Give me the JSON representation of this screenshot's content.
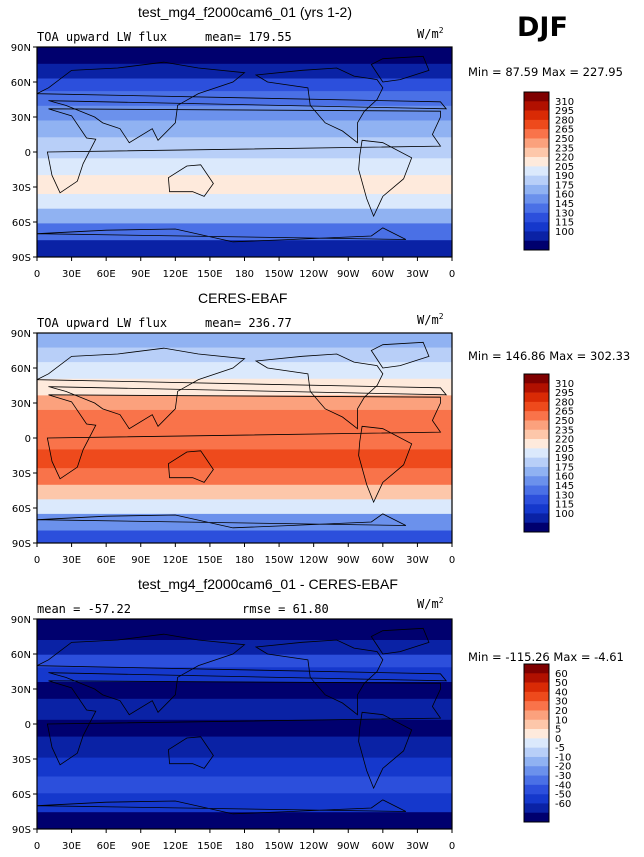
{
  "season": "DJF",
  "units_base": "W/m",
  "units_exp": "2",
  "chart_data": [
    {
      "type": "heatmap",
      "title": "test_mg4_f2000cam6_01 (yrs 1-2)",
      "variable": "TOA upward LW flux",
      "mean_text": "mean= 179.55",
      "units": "W/m2",
      "min": 87.59,
      "max": 227.95,
      "minmax_text": "Min =  87.59 Max = 227.95",
      "x_ticks": [
        "0",
        "30E",
        "60E",
        "90E",
        "120E",
        "150E",
        "180",
        "150W",
        "120W",
        "90W",
        "60W",
        "30W",
        "0"
      ],
      "y_ticks": [
        "90N",
        "60N",
        "30N",
        "0",
        "30S",
        "60S",
        "90S"
      ],
      "levels": [
        "310",
        "295",
        "280",
        "265",
        "250",
        "235",
        "220",
        "205",
        "190",
        "175",
        "160",
        "145",
        "130",
        "115",
        "100"
      ],
      "colors": [
        "#7f0000",
        "#b11000",
        "#d92a05",
        "#ee4a1c",
        "#f9734a",
        "#fba17d",
        "#fdc7aa",
        "#feeadc",
        "#dbe9fc",
        "#b8cff8",
        "#90b2f2",
        "#6b91ec",
        "#4a70e6",
        "#2c4fdc",
        "#1538cc",
        "#0a22a5",
        "#00006e"
      ]
    },
    {
      "type": "heatmap",
      "title": "CERES-EBAF",
      "variable": "TOA upward LW flux",
      "mean_text": "mean= 236.77",
      "units": "W/m2",
      "min": 146.86,
      "max": 302.33,
      "minmax_text": "Min = 146.86 Max = 302.33",
      "x_ticks": [
        "0",
        "30E",
        "60E",
        "90E",
        "120E",
        "150E",
        "180",
        "150W",
        "120W",
        "90W",
        "60W",
        "30W",
        "0"
      ],
      "y_ticks": [
        "90N",
        "60N",
        "30N",
        "0",
        "30S",
        "60S",
        "90S"
      ],
      "levels": [
        "310",
        "295",
        "280",
        "265",
        "250",
        "235",
        "220",
        "205",
        "190",
        "175",
        "160",
        "145",
        "130",
        "115",
        "100"
      ],
      "colors": [
        "#7f0000",
        "#b11000",
        "#d92a05",
        "#ee4a1c",
        "#f9734a",
        "#fba17d",
        "#fdc7aa",
        "#feeadc",
        "#dbe9fc",
        "#b8cff8",
        "#90b2f2",
        "#6b91ec",
        "#4a70e6",
        "#2c4fdc",
        "#1538cc",
        "#0a22a5",
        "#00006e"
      ]
    },
    {
      "type": "heatmap",
      "title": "test_mg4_f2000cam6_01 - CERES-EBAF",
      "mean_text": "mean = -57.22",
      "rmse_text": "rmse =  61.80",
      "units": "W/m2",
      "min": -115.26,
      "max": -4.61,
      "minmax_text": "Min = -115.26 Max =  -4.61",
      "x_ticks": [
        "0",
        "30E",
        "60E",
        "90E",
        "120E",
        "150E",
        "180",
        "150W",
        "120W",
        "90W",
        "60W",
        "30W",
        "0"
      ],
      "y_ticks": [
        "90N",
        "60N",
        "30N",
        "0",
        "30S",
        "60S",
        "90S"
      ],
      "levels": [
        "60",
        "50",
        "40",
        "30",
        "20",
        "10",
        "5",
        "0",
        "-5",
        "-10",
        "-20",
        "-30",
        "-40",
        "-50",
        "-60"
      ],
      "colors": [
        "#7f0000",
        "#b11000",
        "#d92a05",
        "#ee4a1c",
        "#f9734a",
        "#fba17d",
        "#fdc7aa",
        "#feeadc",
        "#dbe9fc",
        "#b8cff8",
        "#90b2f2",
        "#6b91ec",
        "#4a70e6",
        "#2c4fdc",
        "#1538cc",
        "#0a22a5",
        "#00006e"
      ]
    }
  ]
}
